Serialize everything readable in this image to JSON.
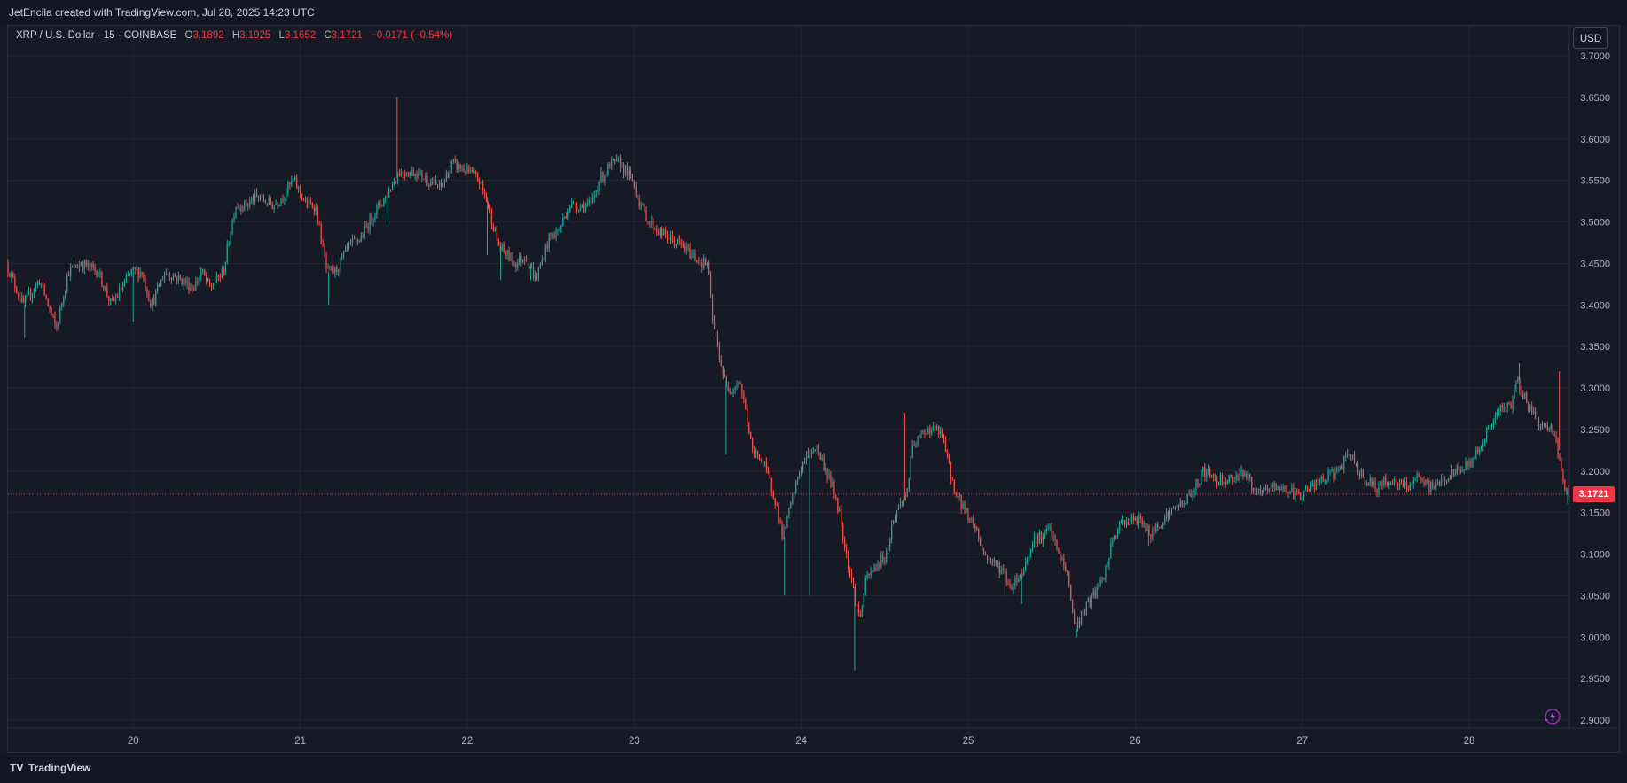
{
  "header": {
    "credit": "JetEncila created with TradingView.com, Jul 28, 2025 14:23 UTC"
  },
  "legend": {
    "symbol": "XRP / U.S. Dollar · 15 · COINBASE",
    "open_label": "O",
    "open": "3.1892",
    "high_label": "H",
    "high": "3.1925",
    "low_label": "L",
    "low": "3.1652",
    "close_label": "C",
    "close": "3.1721",
    "change": "−0.0171 (−0.54%)"
  },
  "currency_button": "USD",
  "last_price": "3.1721",
  "footer": {
    "logo_mark": "TV",
    "brand": "TradingView"
  },
  "colors": {
    "background": "#161a25",
    "grid": "#232633",
    "up": "#26a69a",
    "down": "#ef5350",
    "price_line": "#f23645"
  },
  "chart_data": {
    "type": "candlestick",
    "interval": "15",
    "y_ticks": [
      "3.7000",
      "3.6500",
      "3.6000",
      "3.5500",
      "3.5000",
      "3.4500",
      "3.4000",
      "3.3500",
      "3.3000",
      "3.2500",
      "3.2000",
      "3.1500",
      "3.1000",
      "3.0500",
      "3.0000",
      "2.9500",
      "2.9000"
    ],
    "ylim": [
      2.9,
      3.7
    ],
    "x_ticks": [
      "20",
      "21",
      "22",
      "23",
      "24",
      "25",
      "26",
      "27",
      "28"
    ],
    "x_range": [
      19.25,
      28.6
    ],
    "grid": true,
    "last_price": 3.1721,
    "path": [
      [
        19.25,
        3.45
      ],
      [
        19.35,
        3.4
      ],
      [
        19.45,
        3.43
      ],
      [
        19.55,
        3.37
      ],
      [
        19.62,
        3.44
      ],
      [
        19.7,
        3.45
      ],
      [
        19.8,
        3.44
      ],
      [
        19.88,
        3.4
      ],
      [
        20.0,
        3.44
      ],
      [
        20.06,
        3.44
      ],
      [
        20.12,
        3.4
      ],
      [
        20.2,
        3.44
      ],
      [
        20.3,
        3.43
      ],
      [
        20.37,
        3.42
      ],
      [
        20.42,
        3.44
      ],
      [
        20.47,
        3.42
      ],
      [
        20.55,
        3.44
      ],
      [
        20.62,
        3.52
      ],
      [
        20.68,
        3.52
      ],
      [
        20.75,
        3.53
      ],
      [
        20.85,
        3.52
      ],
      [
        20.9,
        3.53
      ],
      [
        20.97,
        3.55
      ],
      [
        21.05,
        3.52
      ],
      [
        21.1,
        3.52
      ],
      [
        21.17,
        3.44
      ],
      [
        21.22,
        3.44
      ],
      [
        21.3,
        3.47
      ],
      [
        21.37,
        3.48
      ],
      [
        21.45,
        3.51
      ],
      [
        21.52,
        3.53
      ],
      [
        21.6,
        3.56
      ],
      [
        21.7,
        3.56
      ],
      [
        21.78,
        3.55
      ],
      [
        21.85,
        3.54
      ],
      [
        21.92,
        3.57
      ],
      [
        22.02,
        3.56
      ],
      [
        22.08,
        3.55
      ],
      [
        22.12,
        3.53
      ],
      [
        22.2,
        3.47
      ],
      [
        22.3,
        3.45
      ],
      [
        22.36,
        3.46
      ],
      [
        22.42,
        3.43
      ],
      [
        22.5,
        3.48
      ],
      [
        22.56,
        3.49
      ],
      [
        22.62,
        3.52
      ],
      [
        22.7,
        3.52
      ],
      [
        22.75,
        3.52
      ],
      [
        22.8,
        3.55
      ],
      [
        22.88,
        3.57
      ],
      [
        22.93,
        3.57
      ],
      [
        23.0,
        3.55
      ],
      [
        23.05,
        3.52
      ],
      [
        23.1,
        3.5
      ],
      [
        23.15,
        3.49
      ],
      [
        23.22,
        3.48
      ],
      [
        23.3,
        3.47
      ],
      [
        23.36,
        3.46
      ],
      [
        23.42,
        3.45
      ],
      [
        23.45,
        3.45
      ],
      [
        23.48,
        3.38
      ],
      [
        23.52,
        3.34
      ],
      [
        23.56,
        3.3
      ],
      [
        23.6,
        3.3
      ],
      [
        23.64,
        3.31
      ],
      [
        23.68,
        3.27
      ],
      [
        23.72,
        3.22
      ],
      [
        23.76,
        3.22
      ],
      [
        23.8,
        3.2
      ],
      [
        23.85,
        3.17
      ],
      [
        23.9,
        3.12
      ],
      [
        23.95,
        3.16
      ],
      [
        24.0,
        3.2
      ],
      [
        24.05,
        3.22
      ],
      [
        24.1,
        3.23
      ],
      [
        24.16,
        3.2
      ],
      [
        24.2,
        3.18
      ],
      [
        24.24,
        3.15
      ],
      [
        24.28,
        3.1
      ],
      [
        24.32,
        3.06
      ],
      [
        24.36,
        3.02
      ],
      [
        24.4,
        3.07
      ],
      [
        24.44,
        3.08
      ],
      [
        24.48,
        3.09
      ],
      [
        24.52,
        3.1
      ],
      [
        24.56,
        3.14
      ],
      [
        24.6,
        3.16
      ],
      [
        24.64,
        3.17
      ],
      [
        24.68,
        3.23
      ],
      [
        24.72,
        3.24
      ],
      [
        24.76,
        3.25
      ],
      [
        24.82,
        3.25
      ],
      [
        24.86,
        3.24
      ],
      [
        24.9,
        3.2
      ],
      [
        24.94,
        3.17
      ],
      [
        25.0,
        3.15
      ],
      [
        25.06,
        3.13
      ],
      [
        25.1,
        3.1
      ],
      [
        25.16,
        3.09
      ],
      [
        25.22,
        3.08
      ],
      [
        25.26,
        3.06
      ],
      [
        25.3,
        3.07
      ],
      [
        25.34,
        3.08
      ],
      [
        25.4,
        3.12
      ],
      [
        25.45,
        3.12
      ],
      [
        25.5,
        3.13
      ],
      [
        25.55,
        3.1
      ],
      [
        25.6,
        3.08
      ],
      [
        25.65,
        3.01
      ],
      [
        25.7,
        3.03
      ],
      [
        25.76,
        3.05
      ],
      [
        25.82,
        3.07
      ],
      [
        25.88,
        3.12
      ],
      [
        25.94,
        3.14
      ],
      [
        26.0,
        3.14
      ],
      [
        26.06,
        3.14
      ],
      [
        26.1,
        3.12
      ],
      [
        26.16,
        3.14
      ],
      [
        26.22,
        3.15
      ],
      [
        26.28,
        3.16
      ],
      [
        26.34,
        3.17
      ],
      [
        26.42,
        3.2
      ],
      [
        26.5,
        3.19
      ],
      [
        26.58,
        3.19
      ],
      [
        26.66,
        3.2
      ],
      [
        26.74,
        3.17
      ],
      [
        26.82,
        3.18
      ],
      [
        26.9,
        3.18
      ],
      [
        26.98,
        3.17
      ],
      [
        27.06,
        3.18
      ],
      [
        27.14,
        3.19
      ],
      [
        27.22,
        3.2
      ],
      [
        27.3,
        3.22
      ],
      [
        27.38,
        3.19
      ],
      [
        27.46,
        3.18
      ],
      [
        27.54,
        3.19
      ],
      [
        27.62,
        3.18
      ],
      [
        27.7,
        3.19
      ],
      [
        27.78,
        3.18
      ],
      [
        27.86,
        3.19
      ],
      [
        27.94,
        3.2
      ],
      [
        28.02,
        3.21
      ],
      [
        28.1,
        3.24
      ],
      [
        28.18,
        3.27
      ],
      [
        28.26,
        3.28
      ],
      [
        28.3,
        3.31
      ],
      [
        28.36,
        3.28
      ],
      [
        28.42,
        3.26
      ],
      [
        28.48,
        3.25
      ],
      [
        28.52,
        3.25
      ],
      [
        28.56,
        3.2
      ],
      [
        28.6,
        3.17
      ]
    ],
    "spikes": [
      [
        19.35,
        3.36,
        "low"
      ],
      [
        20.0,
        3.38,
        "low"
      ],
      [
        21.17,
        3.4,
        "low"
      ],
      [
        21.58,
        3.65,
        "high"
      ],
      [
        21.52,
        3.5,
        "low"
      ],
      [
        22.12,
        3.46,
        "low"
      ],
      [
        22.2,
        3.43,
        "low"
      ],
      [
        22.38,
        3.43,
        "low"
      ],
      [
        23.55,
        3.22,
        "low"
      ],
      [
        23.9,
        3.05,
        "low"
      ],
      [
        24.05,
        3.05,
        "low"
      ],
      [
        24.32,
        2.96,
        "low"
      ],
      [
        24.62,
        3.27,
        "high"
      ],
      [
        25.22,
        3.05,
        "low"
      ],
      [
        25.32,
        3.04,
        "low"
      ],
      [
        25.65,
        3.0,
        "low"
      ],
      [
        26.08,
        3.11,
        "low"
      ],
      [
        28.3,
        3.33,
        "high"
      ],
      [
        28.54,
        3.32,
        "high"
      ],
      [
        28.59,
        3.16,
        "low"
      ]
    ]
  }
}
